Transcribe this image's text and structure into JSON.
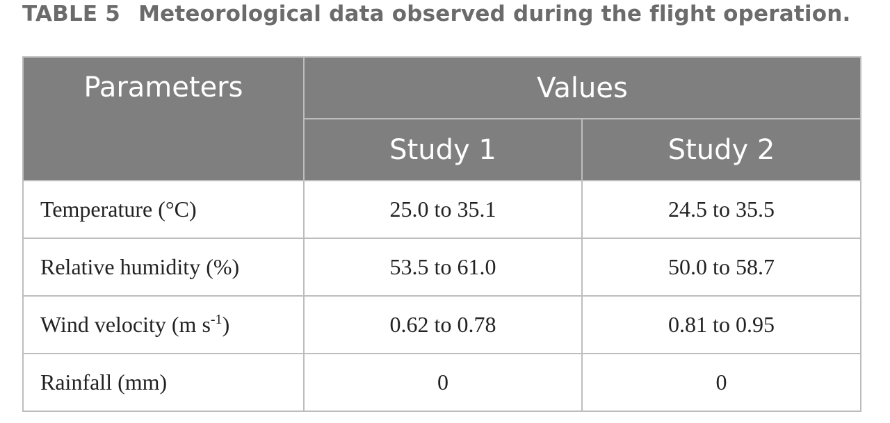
{
  "caption": {
    "label": "TABLE 5",
    "text": "Meteorological data observed during the flight operation."
  },
  "table": {
    "header": {
      "parameters": "Parameters",
      "values": "Values",
      "study1": "Study 1",
      "study2": "Study 2"
    },
    "rows": [
      {
        "parameter": "Temperature (°C)",
        "study1": "25.0 to 35.1",
        "study2": "24.5 to 35.5"
      },
      {
        "parameter": "Relative humidity (%)",
        "study1": "53.5 to 61.0",
        "study2": "50.0 to 58.7"
      },
      {
        "parameter_base": "Wind velocity (m s",
        "parameter_sup": "-1",
        "parameter_close": ")",
        "study1": "0.62 to 0.78",
        "study2": "0.81 to 0.95"
      },
      {
        "parameter": "Rainfall (mm)",
        "study1": "0",
        "study2": "0"
      }
    ]
  },
  "colors": {
    "header_bg": "#7f7f7f",
    "header_text": "#ffffff",
    "border": "#bdbdbd",
    "caption_text": "#6b6b6b",
    "body_text": "#222222"
  }
}
